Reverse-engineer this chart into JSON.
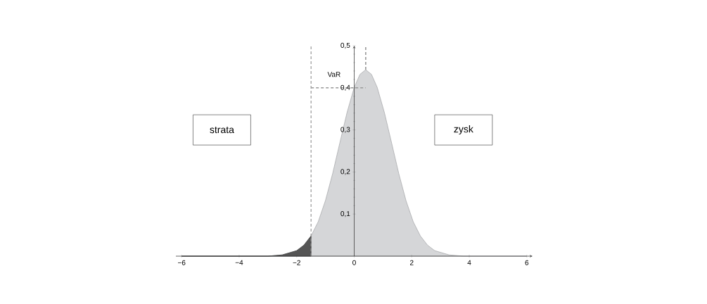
{
  "chart_data": {
    "type": "area",
    "xlim": [
      -6.2,
      6.2
    ],
    "ylim": [
      0,
      0.5
    ],
    "xticks": [
      {
        "value": -6,
        "label": "−6"
      },
      {
        "value": -4,
        "label": "−4"
      },
      {
        "value": -2,
        "label": "−2"
      },
      {
        "value": 0,
        "label": "0"
      },
      2,
      4,
      6
    ],
    "yticks": [
      {
        "value": 0.1,
        "label": "0,1"
      },
      {
        "value": 0.2,
        "label": "0,2"
      },
      {
        "value": 0.3,
        "label": "0,3"
      },
      {
        "value": 0.4,
        "label": "0,4"
      },
      {
        "value": 0.5,
        "label": "0,5"
      }
    ],
    "series": [
      {
        "color": "#d5d6d8",
        "x": [
          -6,
          -4,
          -3,
          -2.5,
          -2,
          -1.75,
          -1.5,
          -1.25,
          -1,
          -0.75,
          -0.5,
          -0.25,
          0,
          0.2,
          0.4,
          0.6,
          0.8,
          1.05,
          1.3,
          1.55,
          1.8,
          2.05,
          2.3,
          2.55,
          2.8,
          3.3,
          3.8,
          4.8,
          6
        ],
        "values": [
          0,
          0,
          0,
          0.003,
          0.013,
          0.026,
          0.048,
          0.082,
          0.132,
          0.196,
          0.269,
          0.341,
          0.401,
          0.432,
          0.443,
          0.432,
          0.401,
          0.341,
          0.269,
          0.196,
          0.132,
          0.082,
          0.048,
          0.026,
          0.013,
          0.003,
          0,
          0,
          0
        ]
      },
      {
        "color": "#555555",
        "x": [
          -6,
          -4,
          -3,
          -2.5,
          -2,
          -1.75,
          -1.5
        ],
        "values": [
          0,
          0,
          0,
          0.003,
          0.013,
          0.026,
          0.048
        ]
      },
      {
        "type": "line",
        "color": "#999999",
        "line_style": "dashed",
        "x": [
          0.4,
          0.4
        ],
        "values": [
          0.443,
          0.5
        ]
      },
      {
        "type": "line",
        "color": "#999999",
        "line_style": "dashed",
        "x": [
          -1.5,
          0.4
        ],
        "values": [
          0.4,
          0.4
        ]
      }
    ],
    "ref_lines": [
      {
        "axis": "x",
        "value": -1.5,
        "color": "#999999",
        "line_style": "dashed"
      }
    ],
    "annotations": [
      "VaR",
      "strata",
      "zysk"
    ]
  }
}
